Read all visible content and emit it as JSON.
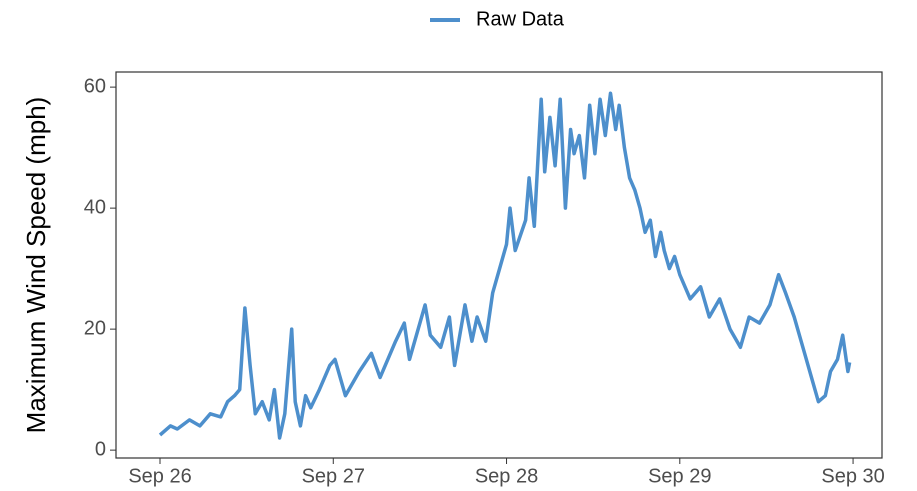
{
  "chart_data": {
    "type": "line",
    "ylabel": "Maximum Wind Speed (mph)",
    "x": [
      0,
      0.06,
      0.1,
      0.17,
      0.23,
      0.29,
      0.35,
      0.39,
      0.43,
      0.46,
      0.49,
      0.52,
      0.55,
      0.59,
      0.63,
      0.66,
      0.69,
      0.72,
      0.76,
      0.78,
      0.81,
      0.84,
      0.87,
      0.92,
      0.98,
      1.01,
      1.07,
      1.15,
      1.22,
      1.27,
      1.36,
      1.41,
      1.44,
      1.53,
      1.56,
      1.62,
      1.67,
      1.7,
      1.76,
      1.8,
      1.83,
      1.88,
      1.92,
      1.96,
      2.0,
      2.02,
      2.05,
      2.11,
      2.13,
      2.16,
      2.2,
      2.22,
      2.25,
      2.28,
      2.31,
      2.34,
      2.37,
      2.39,
      2.42,
      2.45,
      2.48,
      2.51,
      2.54,
      2.57,
      2.6,
      2.63,
      2.65,
      2.68,
      2.71,
      2.74,
      2.77,
      2.8,
      2.83,
      2.86,
      2.89,
      2.91,
      2.94,
      2.97,
      3.0,
      3.06,
      3.12,
      3.17,
      3.23,
      3.29,
      3.35,
      3.4,
      3.46,
      3.52,
      3.57,
      3.61,
      3.66,
      3.72,
      3.76,
      3.8,
      3.84,
      3.87,
      3.91,
      3.94,
      3.97,
      3.98
    ],
    "series": [
      {
        "name": "Raw Data",
        "color": "#4d8fcc",
        "values": [
          2.5,
          4,
          3.5,
          5,
          4,
          6,
          5.5,
          8,
          9,
          10,
          23.5,
          14,
          6,
          8,
          5,
          10,
          2,
          6,
          20,
          8,
          4,
          9,
          7,
          10,
          14,
          15,
          9,
          13,
          16,
          12,
          18,
          21,
          15,
          24,
          19,
          17,
          22,
          14,
          24,
          18,
          22,
          18,
          26,
          30,
          34,
          40,
          33,
          38,
          45,
          37,
          58,
          46,
          55,
          47,
          58,
          40,
          53,
          49,
          52,
          45,
          57,
          49,
          58,
          52,
          59,
          53,
          57,
          50,
          45,
          43,
          40,
          36,
          38,
          32,
          36,
          33,
          30,
          32,
          29,
          25,
          27,
          22,
          25,
          20,
          17,
          22,
          21,
          24,
          29,
          26,
          22,
          16,
          12,
          8,
          9,
          13,
          15,
          19,
          13,
          14.5
        ]
      }
    ],
    "xlim": [
      -0.254,
      4.167
    ],
    "xticks": [
      {
        "value": 0,
        "label": "Sep 26"
      },
      {
        "value": 1,
        "label": "Sep 27"
      },
      {
        "value": 2,
        "label": "Sep 28"
      },
      {
        "value": 3,
        "label": "Sep 29"
      },
      {
        "value": 4,
        "label": "Sep 30"
      }
    ],
    "ylim": [
      -1.3,
      62.5
    ],
    "yticks": [
      0,
      20,
      40,
      60
    ],
    "grid": false,
    "legend": "top"
  }
}
